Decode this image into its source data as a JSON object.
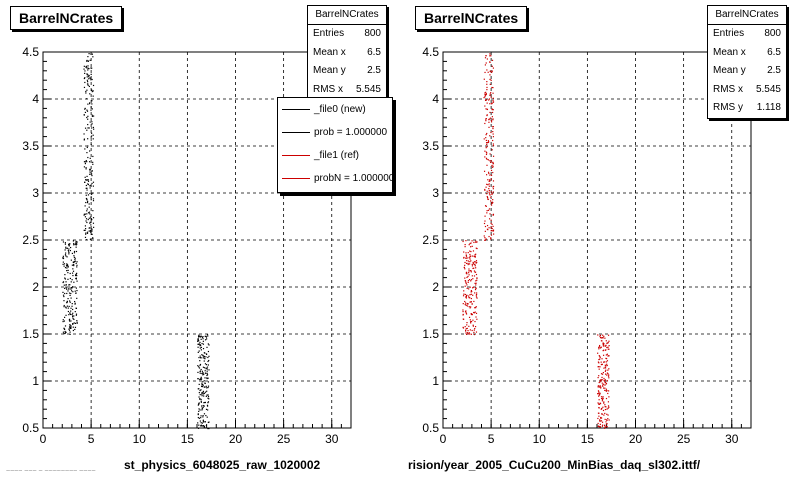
{
  "footnote": "~~~~ ~~~ ~ ~~~~~~~~ ~~~~",
  "chart_data": [
    {
      "type": "scatter",
      "title": "BarrelNCrates",
      "xlabel": "st_physics_6048025_raw_1020002",
      "ylabel": "",
      "xlim": [
        0,
        32
      ],
      "ylim": [
        0.5,
        4.5
      ],
      "xticks": [
        "0",
        "5",
        "10",
        "15",
        "20",
        "25",
        "30"
      ],
      "yticks": [
        "0.5",
        "1",
        "1.5",
        "2",
        "2.5",
        "3",
        "3.5",
        "4",
        "4.5"
      ],
      "grid": true,
      "marker_color": "#000000",
      "clusters": [
        {
          "x": [
            2,
            3.5
          ],
          "y": [
            1.5,
            2.5
          ]
        },
        {
          "x": [
            4.2,
            5.2
          ],
          "y": [
            2.5,
            4.5
          ]
        },
        {
          "x": [
            16,
            17.2
          ],
          "y": [
            0.5,
            1.5
          ]
        }
      ],
      "stats": {
        "title": "BarrelNCrates",
        "rows": [
          {
            "label": "Entries",
            "value": "800"
          },
          {
            "label": "Mean x",
            "value": "6.5"
          },
          {
            "label": "Mean y",
            "value": "2.5"
          },
          {
            "label": "RMS x",
            "value": "5.545"
          }
        ]
      },
      "legend": [
        {
          "label": "_file0 (new)",
          "color": "#000000"
        },
        {
          "label": "prob = 1.000000",
          "color": "#000000"
        },
        {
          "label": "_file1 (ref)",
          "color": "#cc0000"
        },
        {
          "label": "probN = 1.000000",
          "color": "#cc0000"
        }
      ]
    },
    {
      "type": "scatter",
      "title": "BarrelNCrates",
      "xlabel": "rision/year_2005_CuCu200_MinBias_daq_sl302.ittf/",
      "ylabel": "",
      "xlim": [
        0,
        32
      ],
      "ylim": [
        0.5,
        4.5
      ],
      "xticks": [
        "0",
        "5",
        "10",
        "15",
        "20",
        "25",
        "30"
      ],
      "yticks": [
        "0.5",
        "1",
        "1.5",
        "2",
        "2.5",
        "3",
        "3.5",
        "4",
        "4.5"
      ],
      "grid": true,
      "marker_color": "#cc0000",
      "clusters": [
        {
          "x": [
            2,
            3.5
          ],
          "y": [
            1.5,
            2.5
          ]
        },
        {
          "x": [
            4.2,
            5.2
          ],
          "y": [
            2.5,
            4.5
          ]
        },
        {
          "x": [
            16,
            17.2
          ],
          "y": [
            0.5,
            1.5
          ]
        }
      ],
      "stats": {
        "title": "BarrelNCrates",
        "rows": [
          {
            "label": "Entries",
            "value": "800"
          },
          {
            "label": "Mean x",
            "value": "6.5"
          },
          {
            "label": "Mean y",
            "value": "2.5"
          },
          {
            "label": "RMS x",
            "value": "5.545"
          },
          {
            "label": "RMS y",
            "value": "1.118"
          }
        ]
      }
    }
  ]
}
